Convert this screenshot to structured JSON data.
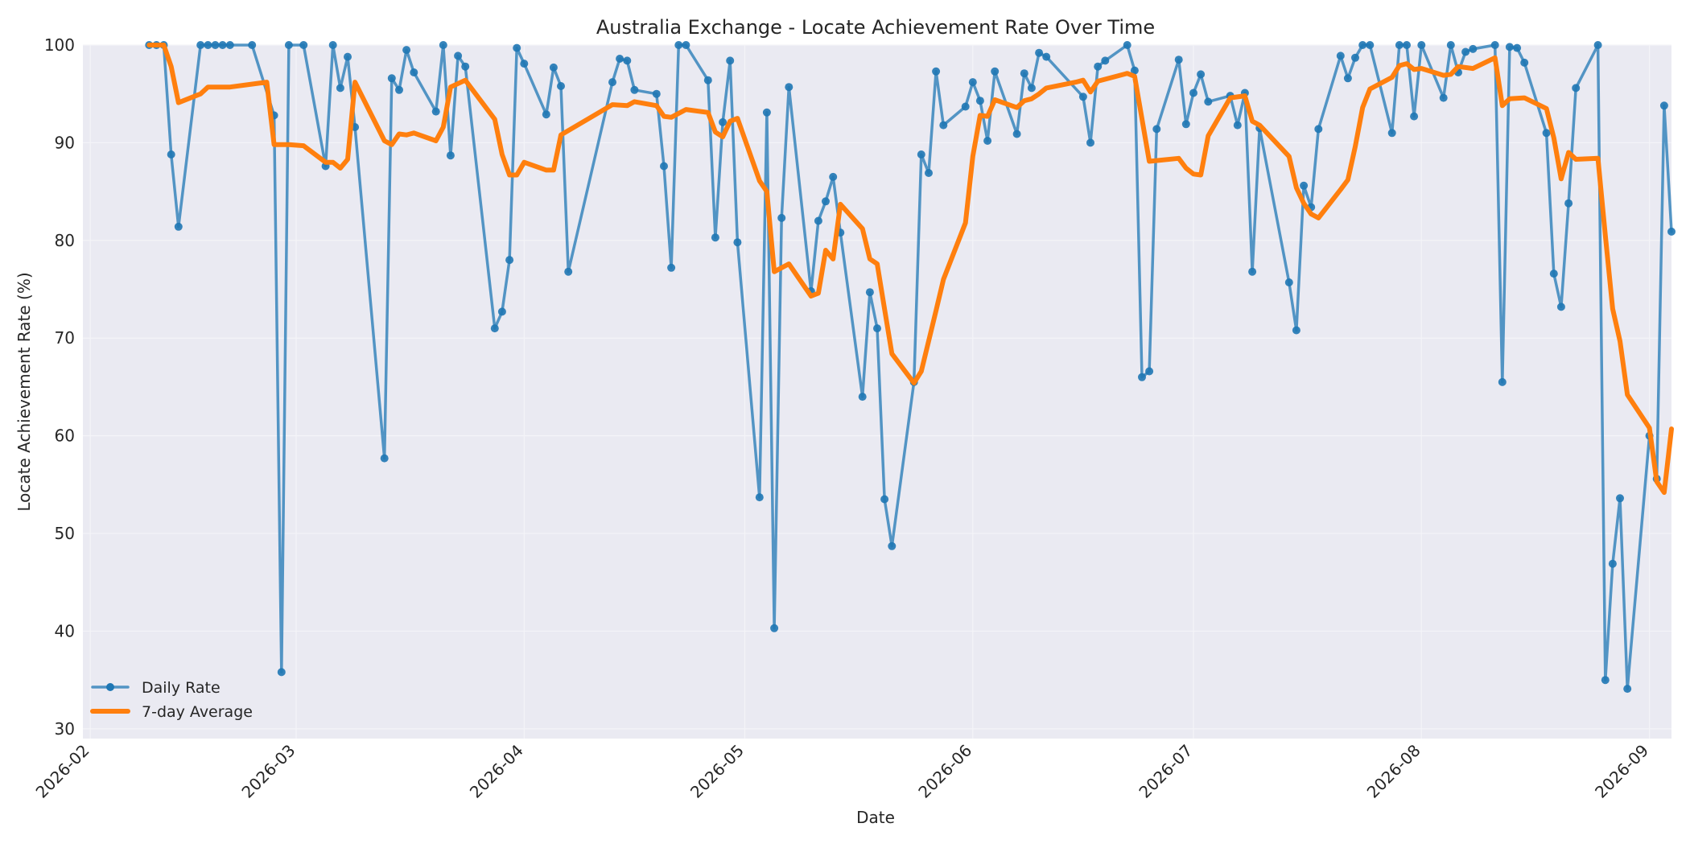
{
  "chart_data": {
    "type": "line",
    "title": "Australia Exchange - Locate Achievement Rate Over Time",
    "xlabel": "Date",
    "ylabel": "Locate Achievement Rate (%)",
    "ylim": [
      29,
      100
    ],
    "xlim": [
      "2026-01-31",
      "2026-09-04"
    ],
    "x_ticks": [
      "2026-02",
      "2026-03",
      "2026-04",
      "2026-05",
      "2026-06",
      "2026-07",
      "2026-08",
      "2026-09"
    ],
    "y_ticks": [
      30,
      40,
      50,
      60,
      70,
      80,
      90,
      100
    ],
    "grid": true,
    "legend_position": "bottom-left",
    "colors": {
      "daily": "#1f77b4",
      "average": "#ff7f0e",
      "plot_bg": "#eaeaf2",
      "grid": "#f4f4f8"
    },
    "series": [
      {
        "name": "Daily Rate",
        "marker": "circle",
        "points": [
          [
            "2026-02-09",
            100
          ],
          [
            "2026-02-10",
            100
          ],
          [
            "2026-02-11",
            100
          ],
          [
            "2026-02-12",
            88.8
          ],
          [
            "2026-02-13",
            81.4
          ],
          [
            "2026-02-16",
            100
          ],
          [
            "2026-02-17",
            100
          ],
          [
            "2026-02-18",
            100
          ],
          [
            "2026-02-19",
            100
          ],
          [
            "2026-02-20",
            100
          ],
          [
            "2026-02-23",
            100
          ],
          [
            "2026-02-26",
            92.8
          ],
          [
            "2026-02-27",
            35.8
          ],
          [
            "2026-02-28",
            100
          ],
          [
            "2026-03-02",
            100
          ],
          [
            "2026-03-05",
            87.6
          ],
          [
            "2026-03-06",
            100
          ],
          [
            "2026-03-07",
            95.6
          ],
          [
            "2026-03-08",
            98.8
          ],
          [
            "2026-03-09",
            91.6
          ],
          [
            "2026-03-13",
            57.7
          ],
          [
            "2026-03-14",
            96.6
          ],
          [
            "2026-03-15",
            95.4
          ],
          [
            "2026-03-16",
            99.5
          ],
          [
            "2026-03-17",
            97.2
          ],
          [
            "2026-03-20",
            93.2
          ],
          [
            "2026-03-21",
            100
          ],
          [
            "2026-03-22",
            88.7
          ],
          [
            "2026-03-23",
            98.9
          ],
          [
            "2026-03-24",
            97.8
          ],
          [
            "2026-03-28",
            71
          ],
          [
            "2026-03-29",
            72.7
          ],
          [
            "2026-03-30",
            78
          ],
          [
            "2026-03-31",
            99.7
          ],
          [
            "2026-04-01",
            98.1
          ],
          [
            "2026-04-04",
            92.9
          ],
          [
            "2026-04-05",
            97.7
          ],
          [
            "2026-04-06",
            95.8
          ],
          [
            "2026-04-07",
            76.8
          ],
          [
            "2026-04-13",
            96.2
          ],
          [
            "2026-04-14",
            98.6
          ],
          [
            "2026-04-15",
            98.4
          ],
          [
            "2026-04-16",
            95.4
          ],
          [
            "2026-04-19",
            95
          ],
          [
            "2026-04-20",
            87.6
          ],
          [
            "2026-04-21",
            77.2
          ],
          [
            "2026-04-22",
            100
          ],
          [
            "2026-04-23",
            100
          ],
          [
            "2026-04-26",
            96.4
          ],
          [
            "2026-04-27",
            80.3
          ],
          [
            "2026-04-28",
            92.1
          ],
          [
            "2026-04-29",
            98.4
          ],
          [
            "2026-04-30",
            79.8
          ],
          [
            "2026-05-03",
            53.7
          ],
          [
            "2026-05-04",
            93.1
          ],
          [
            "2026-05-05",
            40.3
          ],
          [
            "2026-05-06",
            82.3
          ],
          [
            "2026-05-07",
            95.7
          ],
          [
            "2026-05-10",
            74.8
          ],
          [
            "2026-05-11",
            82
          ],
          [
            "2026-05-12",
            84
          ],
          [
            "2026-05-13",
            86.5
          ],
          [
            "2026-05-14",
            80.8
          ],
          [
            "2026-05-17",
            64
          ],
          [
            "2026-05-18",
            74.7
          ],
          [
            "2026-05-19",
            71
          ],
          [
            "2026-05-20",
            53.5
          ],
          [
            "2026-05-21",
            48.7
          ],
          [
            "2026-05-24",
            65.5
          ],
          [
            "2026-05-25",
            88.8
          ],
          [
            "2026-05-26",
            86.9
          ],
          [
            "2026-05-27",
            97.3
          ],
          [
            "2026-05-28",
            91.8
          ],
          [
            "2026-05-31",
            93.7
          ],
          [
            "2026-06-01",
            96.2
          ],
          [
            "2026-06-02",
            94.3
          ],
          [
            "2026-06-03",
            90.2
          ],
          [
            "2026-06-04",
            97.3
          ],
          [
            "2026-06-07",
            90.9
          ],
          [
            "2026-06-08",
            97.1
          ],
          [
            "2026-06-09",
            95.6
          ],
          [
            "2026-06-10",
            99.2
          ],
          [
            "2026-06-11",
            98.8
          ],
          [
            "2026-06-16",
            94.7
          ],
          [
            "2026-06-17",
            90
          ],
          [
            "2026-06-18",
            97.8
          ],
          [
            "2026-06-19",
            98.4
          ],
          [
            "2026-06-22",
            100
          ],
          [
            "2026-06-23",
            97.4
          ],
          [
            "2026-06-24",
            66
          ],
          [
            "2026-06-25",
            66.6
          ],
          [
            "2026-06-26",
            91.4
          ],
          [
            "2026-06-29",
            98.5
          ],
          [
            "2026-06-30",
            91.9
          ],
          [
            "2026-07-01",
            95.1
          ],
          [
            "2026-07-02",
            97
          ],
          [
            "2026-07-03",
            94.2
          ],
          [
            "2026-07-06",
            94.8
          ],
          [
            "2026-07-07",
            91.8
          ],
          [
            "2026-07-08",
            95.1
          ],
          [
            "2026-07-09",
            76.8
          ],
          [
            "2026-07-10",
            91.5
          ],
          [
            "2026-07-14",
            75.7
          ],
          [
            "2026-07-15",
            70.8
          ],
          [
            "2026-07-16",
            85.6
          ],
          [
            "2026-07-17",
            83.4
          ],
          [
            "2026-07-18",
            91.4
          ],
          [
            "2026-07-21",
            98.9
          ],
          [
            "2026-07-22",
            96.6
          ],
          [
            "2026-07-23",
            98.7
          ],
          [
            "2026-07-24",
            100
          ],
          [
            "2026-07-25",
            100
          ],
          [
            "2026-07-28",
            91
          ],
          [
            "2026-07-29",
            100
          ],
          [
            "2026-07-30",
            100
          ],
          [
            "2026-07-31",
            92.7
          ],
          [
            "2026-08-01",
            100
          ],
          [
            "2026-08-04",
            94.6
          ],
          [
            "2026-08-05",
            100
          ],
          [
            "2026-08-06",
            97.2
          ],
          [
            "2026-08-07",
            99.3
          ],
          [
            "2026-08-08",
            99.6
          ],
          [
            "2026-08-11",
            100
          ],
          [
            "2026-08-12",
            65.5
          ],
          [
            "2026-08-13",
            99.8
          ],
          [
            "2026-08-14",
            99.7
          ],
          [
            "2026-08-15",
            98.2
          ],
          [
            "2026-08-18",
            91
          ],
          [
            "2026-08-19",
            76.6
          ],
          [
            "2026-08-20",
            73.2
          ],
          [
            "2026-08-21",
            83.8
          ],
          [
            "2026-08-22",
            95.6
          ],
          [
            "2026-08-25",
            100
          ],
          [
            "2026-08-26",
            35
          ],
          [
            "2026-08-27",
            46.9
          ],
          [
            "2026-08-28",
            53.6
          ],
          [
            "2026-08-29",
            34.1
          ],
          [
            "2026-09-01",
            60
          ],
          [
            "2026-09-02",
            55.6
          ],
          [
            "2026-09-03",
            93.8
          ],
          [
            "2026-09-04",
            80.9
          ]
        ]
      },
      {
        "name": "7-day Average",
        "points": [
          [
            "2026-02-09",
            100
          ],
          [
            "2026-02-11",
            100
          ],
          [
            "2026-02-12",
            97.8
          ],
          [
            "2026-02-13",
            94.1
          ],
          [
            "2026-02-16",
            95
          ],
          [
            "2026-02-17",
            95.7
          ],
          [
            "2026-02-20",
            95.7
          ],
          [
            "2026-02-25",
            96.2
          ],
          [
            "2026-02-26",
            89.8
          ],
          [
            "2026-02-28",
            89.8
          ],
          [
            "2026-03-02",
            89.7
          ],
          [
            "2026-03-05",
            88
          ],
          [
            "2026-03-06",
            88
          ],
          [
            "2026-03-07",
            87.4
          ],
          [
            "2026-03-08",
            88.3
          ],
          [
            "2026-03-09",
            96.2
          ],
          [
            "2026-03-11",
            93.2
          ],
          [
            "2026-03-13",
            90.2
          ],
          [
            "2026-03-14",
            89.8
          ],
          [
            "2026-03-15",
            90.9
          ],
          [
            "2026-03-16",
            90.8
          ],
          [
            "2026-03-17",
            91
          ],
          [
            "2026-03-20",
            90.2
          ],
          [
            "2026-03-21",
            91.6
          ],
          [
            "2026-03-22",
            95.7
          ],
          [
            "2026-03-24",
            96.4
          ],
          [
            "2026-03-28",
            92.4
          ],
          [
            "2026-03-29",
            88.8
          ],
          [
            "2026-03-30",
            86.7
          ],
          [
            "2026-03-31",
            86.7
          ],
          [
            "2026-04-01",
            88
          ],
          [
            "2026-04-04",
            87.2
          ],
          [
            "2026-04-05",
            87.2
          ],
          [
            "2026-04-06",
            90.8
          ],
          [
            "2026-04-13",
            93.9
          ],
          [
            "2026-04-15",
            93.8
          ],
          [
            "2026-04-16",
            94.2
          ],
          [
            "2026-04-19",
            93.8
          ],
          [
            "2026-04-20",
            92.7
          ],
          [
            "2026-04-21",
            92.6
          ],
          [
            "2026-04-23",
            93.4
          ],
          [
            "2026-04-26",
            93.1
          ],
          [
            "2026-04-27",
            91.1
          ],
          [
            "2026-04-28",
            90.6
          ],
          [
            "2026-04-29",
            92.2
          ],
          [
            "2026-04-30",
            92.5
          ],
          [
            "2026-05-03",
            86.1
          ],
          [
            "2026-05-04",
            85
          ],
          [
            "2026-05-05",
            76.8
          ],
          [
            "2026-05-07",
            77.6
          ],
          [
            "2026-05-10",
            74.3
          ],
          [
            "2026-05-11",
            74.6
          ],
          [
            "2026-05-12",
            79
          ],
          [
            "2026-05-13",
            78.1
          ],
          [
            "2026-05-14",
            83.7
          ],
          [
            "2026-05-17",
            81.2
          ],
          [
            "2026-05-18",
            78.1
          ],
          [
            "2026-05-19",
            77.6
          ],
          [
            "2026-05-20",
            73
          ],
          [
            "2026-05-21",
            68.4
          ],
          [
            "2026-05-24",
            65.4
          ],
          [
            "2026-05-25",
            66.6
          ],
          [
            "2026-05-27",
            72.8
          ],
          [
            "2026-05-28",
            76
          ],
          [
            "2026-05-31",
            81.8
          ],
          [
            "2026-06-01",
            88.6
          ],
          [
            "2026-06-02",
            92.8
          ],
          [
            "2026-06-03",
            92.7
          ],
          [
            "2026-06-04",
            94.4
          ],
          [
            "2026-06-07",
            93.6
          ],
          [
            "2026-06-08",
            94.3
          ],
          [
            "2026-06-09",
            94.5
          ],
          [
            "2026-06-10",
            95
          ],
          [
            "2026-06-11",
            95.6
          ],
          [
            "2026-06-15",
            96.2
          ],
          [
            "2026-06-16",
            96.4
          ],
          [
            "2026-06-17",
            95.2
          ],
          [
            "2026-06-18",
            96.3
          ],
          [
            "2026-06-22",
            97.1
          ],
          [
            "2026-06-23",
            96.8
          ],
          [
            "2026-06-25",
            88.1
          ],
          [
            "2026-06-29",
            88.4
          ],
          [
            "2026-06-30",
            87.4
          ],
          [
            "2026-07-01",
            86.8
          ],
          [
            "2026-07-02",
            86.7
          ],
          [
            "2026-07-03",
            90.7
          ],
          [
            "2026-07-06",
            94.6
          ],
          [
            "2026-07-08",
            94.8
          ],
          [
            "2026-07-09",
            92.2
          ],
          [
            "2026-07-10",
            91.8
          ],
          [
            "2026-07-14",
            88.6
          ],
          [
            "2026-07-15",
            85.4
          ],
          [
            "2026-07-16",
            83.8
          ],
          [
            "2026-07-17",
            82.7
          ],
          [
            "2026-07-18",
            82.3
          ],
          [
            "2026-07-21",
            85.2
          ],
          [
            "2026-07-22",
            86.2
          ],
          [
            "2026-07-23",
            89.6
          ],
          [
            "2026-07-24",
            93.6
          ],
          [
            "2026-07-25",
            95.5
          ],
          [
            "2026-07-28",
            96.7
          ],
          [
            "2026-07-29",
            97.9
          ],
          [
            "2026-07-30",
            98.1
          ],
          [
            "2026-07-31",
            97.5
          ],
          [
            "2026-08-01",
            97.6
          ],
          [
            "2026-08-04",
            96.9
          ],
          [
            "2026-08-05",
            97
          ],
          [
            "2026-08-06",
            97.8
          ],
          [
            "2026-08-08",
            97.6
          ],
          [
            "2026-08-11",
            98.7
          ],
          [
            "2026-08-12",
            93.8
          ],
          [
            "2026-08-13",
            94.5
          ],
          [
            "2026-08-15",
            94.6
          ],
          [
            "2026-08-18",
            93.5
          ],
          [
            "2026-08-19",
            90.5
          ],
          [
            "2026-08-20",
            86.3
          ],
          [
            "2026-08-21",
            89
          ],
          [
            "2026-08-22",
            88.3
          ],
          [
            "2026-08-25",
            88.4
          ],
          [
            "2026-08-26",
            80.5
          ],
          [
            "2026-08-27",
            73
          ],
          [
            "2026-08-28",
            69.7
          ],
          [
            "2026-08-29",
            64.2
          ],
          [
            "2026-09-01",
            60.8
          ],
          [
            "2026-09-02",
            55.3
          ],
          [
            "2026-09-03",
            54.2
          ],
          [
            "2026-09-04",
            60.7
          ]
        ]
      }
    ]
  }
}
